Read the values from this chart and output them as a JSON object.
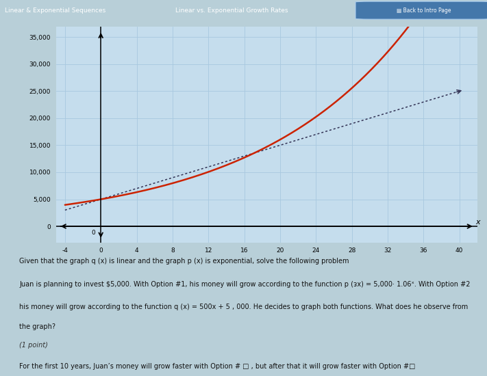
{
  "title": "Linear vs. Exponential Growth Rates",
  "tab1": "Linear & Exponential Sequences",
  "tab2": "Linear vs. Exponential Growth Rates",
  "x_min": -5,
  "x_max": 42,
  "y_min": -3000,
  "y_max": 37000,
  "x_ticks": [
    -4,
    0,
    4,
    8,
    12,
    16,
    20,
    24,
    28,
    32,
    36,
    40
  ],
  "y_ticks": [
    0,
    5000,
    10000,
    15000,
    20000,
    25000,
    30000,
    35000
  ],
  "y_tick_labels": [
    "0",
    "5,000",
    "10,000",
    "15,000",
    "20,000",
    "25,000",
    "30,000",
    "35,000"
  ],
  "grid_color": "#a8c8df",
  "plot_bg": "#c5dded",
  "outer_bg": "#b8cfd8",
  "exp_color": "#cc2200",
  "lin_color": "#333355",
  "header_bg": "#5588bb",
  "text_color": "#222222",
  "description_line1": "Given that the graph q (x) is linear and the graph p (x) is exponential, solve the following problem",
  "description_line2": "Juan is planning to invest $5,000. With Option #1, his money will grow according to the function p (ᴈx) = 5,000· 1.06ˣ. With Option #2",
  "description_line3": "his money will grow according to the function q (x) = 500x + 5 , 000. He decides to graph both functions. What does he observe from",
  "description_line4": "the graph?",
  "point_label": "(1 point)",
  "answer_line": "For the first 10 years, Juan’s money will grow faster with Option # □ , but after that it will grow faster with Option #□"
}
